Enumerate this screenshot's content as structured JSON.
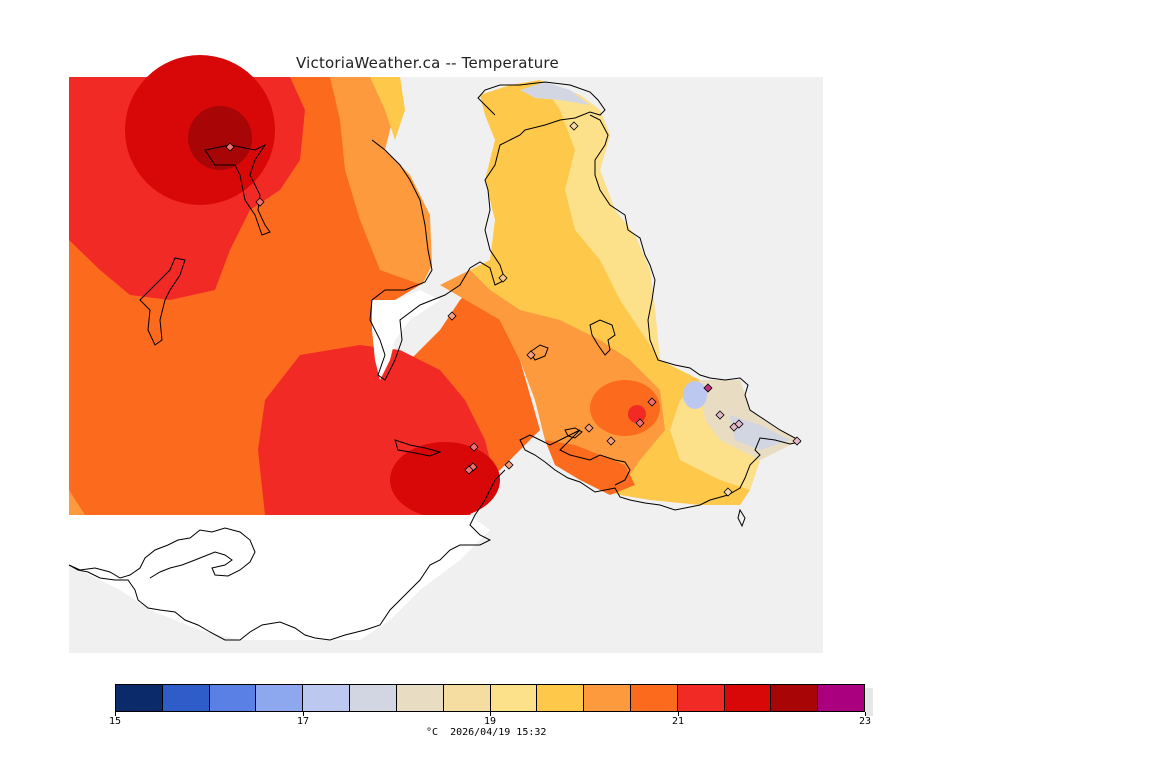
{
  "header": {
    "title": "VictoriaWeather.ca -- Temperature"
  },
  "legend": {
    "colors": [
      "#0a2a6a",
      "#2e5cc8",
      "#5a80e6",
      "#8ea8f0",
      "#bcc8f0",
      "#d2d6e2",
      "#e8dcc2",
      "#f5dca0",
      "#fde08a",
      "#fec84a",
      "#fd9a3e",
      "#fc6a1e",
      "#f22a26",
      "#d80808",
      "#a80606",
      "#aa0080"
    ],
    "ticks": [
      {
        "value": 15,
        "label": "15"
      },
      {
        "value": 17,
        "label": "17"
      },
      {
        "value": 19,
        "label": "19"
      },
      {
        "value": 21,
        "label": "21"
      },
      {
        "value": 23,
        "label": "23"
      }
    ],
    "min": 15,
    "max": 23,
    "caption": "°C  2026/04/19 15:32"
  },
  "map": {
    "background": "#f0f0f0",
    "land_outline": "#000000",
    "station_marker": "diamond"
  }
}
